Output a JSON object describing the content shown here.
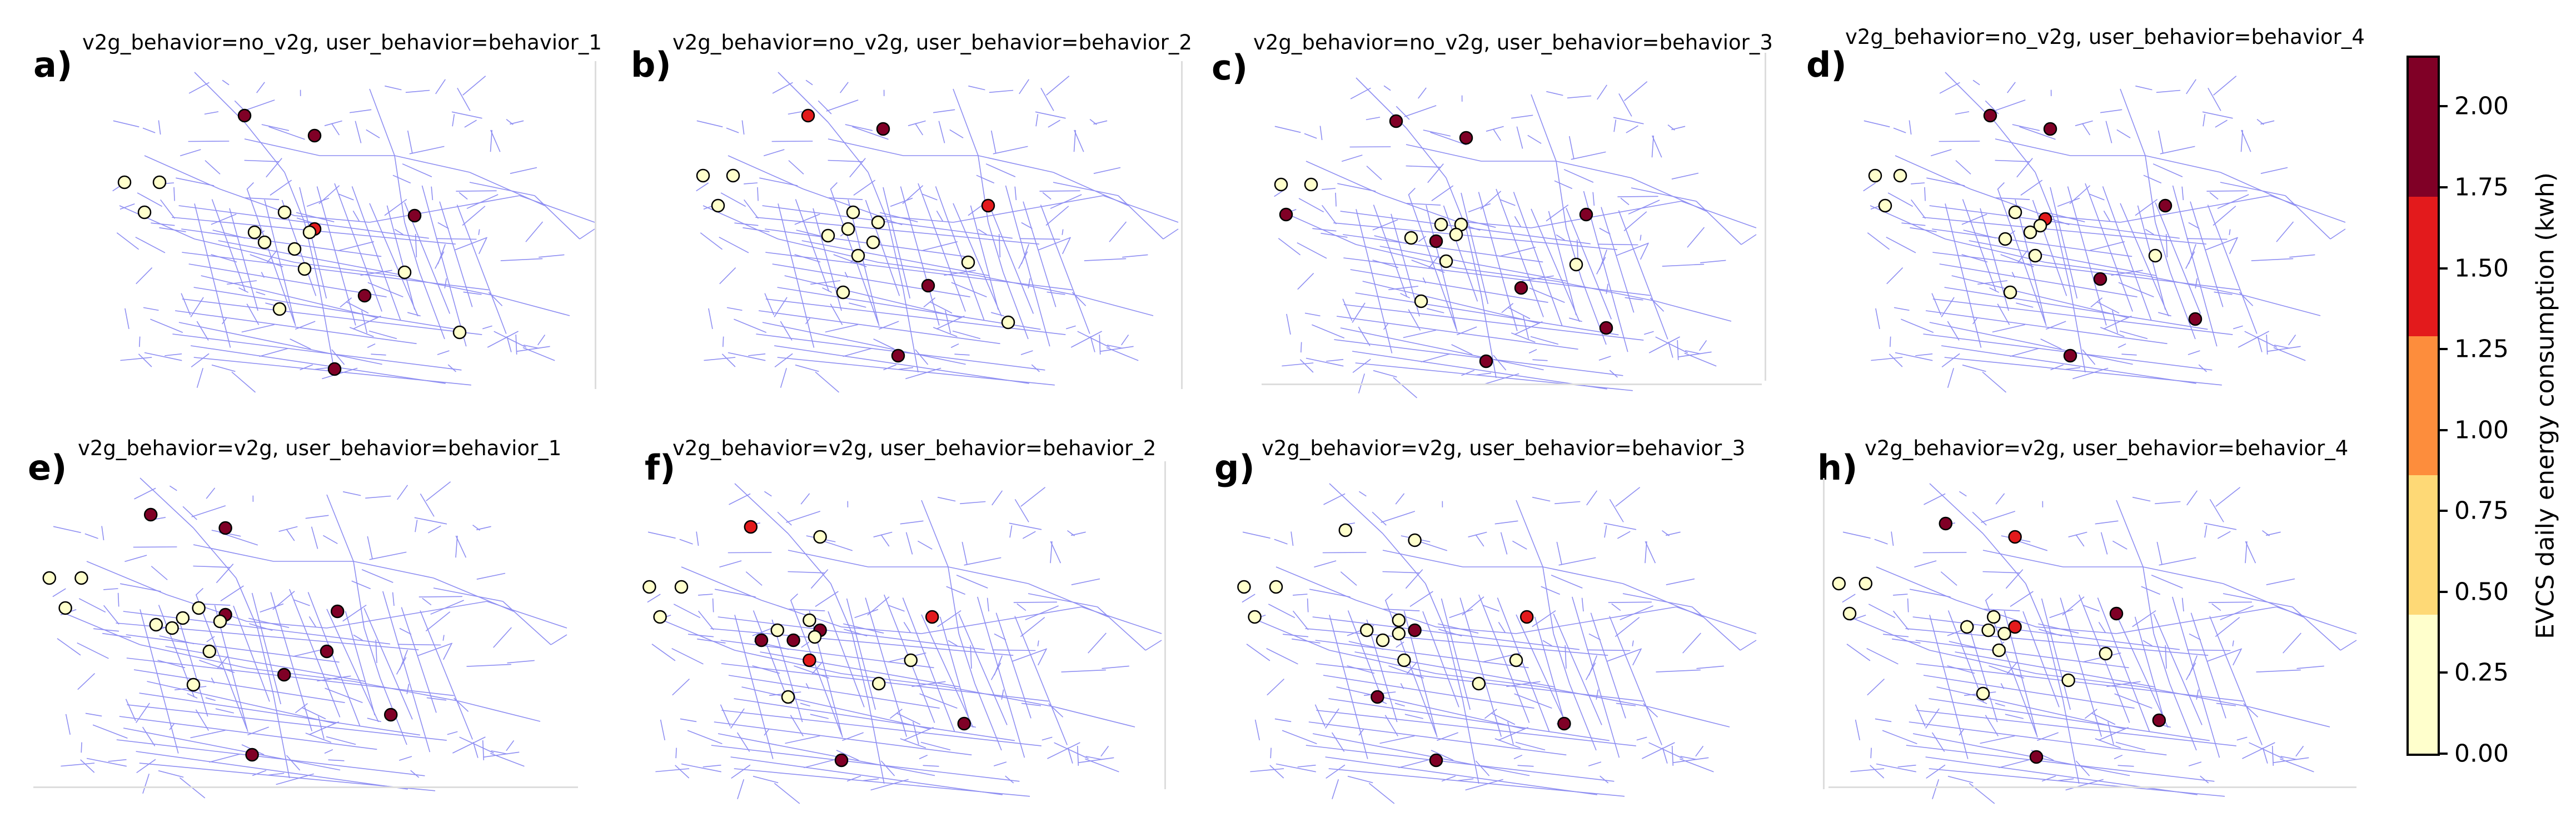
{
  "chart_data": {
    "type": "scatter",
    "description_kind": "small multiples map",
    "panels": [
      {
        "label": "a)",
        "title": "v2g_behavior=no_v2g, user_behavior=behavior_1",
        "stations": [
          {
            "x": 0.3,
            "y": 0.18,
            "value": 2.0
          },
          {
            "x": 0.44,
            "y": 0.24,
            "value": 2.0
          },
          {
            "x": 0.06,
            "y": 0.38,
            "value": 0.1
          },
          {
            "x": 0.13,
            "y": 0.38,
            "value": 0.1
          },
          {
            "x": 0.1,
            "y": 0.47,
            "value": 0.1
          },
          {
            "x": 0.38,
            "y": 0.47,
            "value": 0.1
          },
          {
            "x": 0.44,
            "y": 0.52,
            "value": 1.6
          },
          {
            "x": 0.43,
            "y": 0.53,
            "value": 0.1
          },
          {
            "x": 0.34,
            "y": 0.56,
            "value": 0.1
          },
          {
            "x": 0.4,
            "y": 0.58,
            "value": 0.1
          },
          {
            "x": 0.32,
            "y": 0.53,
            "value": 0.1
          },
          {
            "x": 0.64,
            "y": 0.48,
            "value": 2.0
          },
          {
            "x": 0.42,
            "y": 0.64,
            "value": 0.1
          },
          {
            "x": 0.62,
            "y": 0.65,
            "value": 0.1
          },
          {
            "x": 0.54,
            "y": 0.72,
            "value": 2.0
          },
          {
            "x": 0.37,
            "y": 0.76,
            "value": 0.1
          },
          {
            "x": 0.73,
            "y": 0.83,
            "value": 0.1
          },
          {
            "x": 0.48,
            "y": 0.94,
            "value": 2.0
          }
        ]
      },
      {
        "label": "b)",
        "title": "v2g_behavior=no_v2g, user_behavior=behavior_2",
        "stations": [
          {
            "x": 0.26,
            "y": 0.18,
            "value": 1.6
          },
          {
            "x": 0.41,
            "y": 0.22,
            "value": 2.0
          },
          {
            "x": 0.05,
            "y": 0.36,
            "value": 0.1
          },
          {
            "x": 0.11,
            "y": 0.36,
            "value": 0.1
          },
          {
            "x": 0.08,
            "y": 0.45,
            "value": 0.1
          },
          {
            "x": 0.62,
            "y": 0.45,
            "value": 1.6
          },
          {
            "x": 0.35,
            "y": 0.47,
            "value": 0.1
          },
          {
            "x": 0.4,
            "y": 0.5,
            "value": 0.1
          },
          {
            "x": 0.34,
            "y": 0.52,
            "value": 0.1
          },
          {
            "x": 0.3,
            "y": 0.54,
            "value": 0.1
          },
          {
            "x": 0.39,
            "y": 0.56,
            "value": 0.1
          },
          {
            "x": 0.36,
            "y": 0.6,
            "value": 0.1
          },
          {
            "x": 0.58,
            "y": 0.62,
            "value": 0.1
          },
          {
            "x": 0.5,
            "y": 0.69,
            "value": 2.0
          },
          {
            "x": 0.33,
            "y": 0.71,
            "value": 0.1
          },
          {
            "x": 0.66,
            "y": 0.8,
            "value": 0.1
          },
          {
            "x": 0.44,
            "y": 0.9,
            "value": 2.0
          }
        ]
      },
      {
        "label": "c)",
        "title": "v2g_behavior=no_v2g, user_behavior=behavior_3",
        "stations": [
          {
            "x": 0.28,
            "y": 0.18,
            "value": 2.0
          },
          {
            "x": 0.42,
            "y": 0.23,
            "value": 2.0
          },
          {
            "x": 0.05,
            "y": 0.37,
            "value": 0.1
          },
          {
            "x": 0.11,
            "y": 0.37,
            "value": 0.1
          },
          {
            "x": 0.06,
            "y": 0.46,
            "value": 2.0
          },
          {
            "x": 0.66,
            "y": 0.46,
            "value": 2.0
          },
          {
            "x": 0.37,
            "y": 0.49,
            "value": 0.1
          },
          {
            "x": 0.41,
            "y": 0.49,
            "value": 0.1
          },
          {
            "x": 0.31,
            "y": 0.53,
            "value": 0.1
          },
          {
            "x": 0.4,
            "y": 0.52,
            "value": 0.1
          },
          {
            "x": 0.36,
            "y": 0.54,
            "value": 2.0
          },
          {
            "x": 0.38,
            "y": 0.6,
            "value": 0.1
          },
          {
            "x": 0.64,
            "y": 0.61,
            "value": 0.1
          },
          {
            "x": 0.53,
            "y": 0.68,
            "value": 2.0
          },
          {
            "x": 0.33,
            "y": 0.72,
            "value": 0.1
          },
          {
            "x": 0.7,
            "y": 0.8,
            "value": 2.0
          },
          {
            "x": 0.46,
            "y": 0.9,
            "value": 2.0
          }
        ]
      },
      {
        "label": "d)",
        "title": "v2g_behavior=no_v2g, user_behavior=behavior_4",
        "stations": [
          {
            "x": 0.29,
            "y": 0.18,
            "value": 2.0
          },
          {
            "x": 0.41,
            "y": 0.22,
            "value": 2.0
          },
          {
            "x": 0.06,
            "y": 0.36,
            "value": 0.1
          },
          {
            "x": 0.11,
            "y": 0.36,
            "value": 0.1
          },
          {
            "x": 0.08,
            "y": 0.45,
            "value": 0.1
          },
          {
            "x": 0.64,
            "y": 0.45,
            "value": 2.0
          },
          {
            "x": 0.34,
            "y": 0.47,
            "value": 0.1
          },
          {
            "x": 0.4,
            "y": 0.49,
            "value": 1.6
          },
          {
            "x": 0.39,
            "y": 0.51,
            "value": 0.1
          },
          {
            "x": 0.37,
            "y": 0.53,
            "value": 0.1
          },
          {
            "x": 0.32,
            "y": 0.55,
            "value": 0.1
          },
          {
            "x": 0.38,
            "y": 0.6,
            "value": 0.1
          },
          {
            "x": 0.62,
            "y": 0.6,
            "value": 0.1
          },
          {
            "x": 0.51,
            "y": 0.67,
            "value": 2.0
          },
          {
            "x": 0.33,
            "y": 0.71,
            "value": 0.1
          },
          {
            "x": 0.7,
            "y": 0.79,
            "value": 2.0
          },
          {
            "x": 0.45,
            "y": 0.9,
            "value": 2.0
          }
        ]
      },
      {
        "label": "e)",
        "title": "v2g_behavior=v2g, user_behavior=behavior_1",
        "stations": [
          {
            "x": 0.22,
            "y": 0.16,
            "value": 2.0
          },
          {
            "x": 0.36,
            "y": 0.2,
            "value": 2.0
          },
          {
            "x": 0.03,
            "y": 0.35,
            "value": 0.1
          },
          {
            "x": 0.09,
            "y": 0.35,
            "value": 0.1
          },
          {
            "x": 0.06,
            "y": 0.44,
            "value": 0.1
          },
          {
            "x": 0.31,
            "y": 0.44,
            "value": 0.1
          },
          {
            "x": 0.36,
            "y": 0.46,
            "value": 2.0
          },
          {
            "x": 0.35,
            "y": 0.48,
            "value": 0.1
          },
          {
            "x": 0.28,
            "y": 0.47,
            "value": 0.1
          },
          {
            "x": 0.26,
            "y": 0.5,
            "value": 0.1
          },
          {
            "x": 0.23,
            "y": 0.49,
            "value": 0.1
          },
          {
            "x": 0.57,
            "y": 0.45,
            "value": 2.0
          },
          {
            "x": 0.33,
            "y": 0.57,
            "value": 0.1
          },
          {
            "x": 0.55,
            "y": 0.57,
            "value": 2.0
          },
          {
            "x": 0.47,
            "y": 0.64,
            "value": 2.0
          },
          {
            "x": 0.3,
            "y": 0.67,
            "value": 0.1
          },
          {
            "x": 0.67,
            "y": 0.76,
            "value": 2.0
          },
          {
            "x": 0.41,
            "y": 0.88,
            "value": 2.0
          }
        ]
      },
      {
        "label": "f)",
        "title": "v2g_behavior=v2g, user_behavior=behavior_2",
        "stations": [
          {
            "x": 0.23,
            "y": 0.18,
            "value": 1.6
          },
          {
            "x": 0.36,
            "y": 0.21,
            "value": 0.1
          },
          {
            "x": 0.04,
            "y": 0.36,
            "value": 0.1
          },
          {
            "x": 0.1,
            "y": 0.36,
            "value": 0.1
          },
          {
            "x": 0.06,
            "y": 0.45,
            "value": 0.1
          },
          {
            "x": 0.57,
            "y": 0.45,
            "value": 1.6
          },
          {
            "x": 0.34,
            "y": 0.46,
            "value": 0.1
          },
          {
            "x": 0.36,
            "y": 0.49,
            "value": 2.0
          },
          {
            "x": 0.35,
            "y": 0.51,
            "value": 0.1
          },
          {
            "x": 0.28,
            "y": 0.49,
            "value": 0.1
          },
          {
            "x": 0.31,
            "y": 0.52,
            "value": 2.0
          },
          {
            "x": 0.25,
            "y": 0.52,
            "value": 2.0
          },
          {
            "x": 0.34,
            "y": 0.58,
            "value": 1.6
          },
          {
            "x": 0.53,
            "y": 0.58,
            "value": 0.1
          },
          {
            "x": 0.47,
            "y": 0.65,
            "value": 0.1
          },
          {
            "x": 0.3,
            "y": 0.69,
            "value": 0.1
          },
          {
            "x": 0.63,
            "y": 0.77,
            "value": 2.0
          },
          {
            "x": 0.4,
            "y": 0.88,
            "value": 2.0
          }
        ]
      },
      {
        "label": "g)",
        "title": "v2g_behavior=v2g, user_behavior=behavior_3",
        "stations": [
          {
            "x": 0.23,
            "y": 0.19,
            "value": 0.1
          },
          {
            "x": 0.36,
            "y": 0.22,
            "value": 0.1
          },
          {
            "x": 0.04,
            "y": 0.36,
            "value": 0.1
          },
          {
            "x": 0.1,
            "y": 0.36,
            "value": 0.1
          },
          {
            "x": 0.06,
            "y": 0.45,
            "value": 0.1
          },
          {
            "x": 0.57,
            "y": 0.45,
            "value": 1.6
          },
          {
            "x": 0.33,
            "y": 0.46,
            "value": 0.1
          },
          {
            "x": 0.36,
            "y": 0.49,
            "value": 2.0
          },
          {
            "x": 0.33,
            "y": 0.5,
            "value": 0.1
          },
          {
            "x": 0.27,
            "y": 0.49,
            "value": 0.1
          },
          {
            "x": 0.3,
            "y": 0.52,
            "value": 0.1
          },
          {
            "x": 0.34,
            "y": 0.58,
            "value": 0.1
          },
          {
            "x": 0.55,
            "y": 0.58,
            "value": 0.1
          },
          {
            "x": 0.48,
            "y": 0.65,
            "value": 0.1
          },
          {
            "x": 0.29,
            "y": 0.69,
            "value": 2.0
          },
          {
            "x": 0.64,
            "y": 0.77,
            "value": 2.0
          },
          {
            "x": 0.4,
            "y": 0.88,
            "value": 2.0
          }
        ]
      },
      {
        "label": "h)",
        "title": "v2g_behavior=v2g, user_behavior=behavior_4",
        "stations": [
          {
            "x": 0.23,
            "y": 0.17,
            "value": 2.0
          },
          {
            "x": 0.36,
            "y": 0.21,
            "value": 1.6
          },
          {
            "x": 0.03,
            "y": 0.35,
            "value": 0.1
          },
          {
            "x": 0.08,
            "y": 0.35,
            "value": 0.1
          },
          {
            "x": 0.05,
            "y": 0.44,
            "value": 0.1
          },
          {
            "x": 0.55,
            "y": 0.44,
            "value": 2.0
          },
          {
            "x": 0.32,
            "y": 0.45,
            "value": 0.1
          },
          {
            "x": 0.36,
            "y": 0.48,
            "value": 1.6
          },
          {
            "x": 0.34,
            "y": 0.5,
            "value": 0.1
          },
          {
            "x": 0.27,
            "y": 0.48,
            "value": 0.1
          },
          {
            "x": 0.31,
            "y": 0.49,
            "value": 0.1
          },
          {
            "x": 0.33,
            "y": 0.55,
            "value": 0.1
          },
          {
            "x": 0.53,
            "y": 0.56,
            "value": 0.1
          },
          {
            "x": 0.46,
            "y": 0.64,
            "value": 0.1
          },
          {
            "x": 0.3,
            "y": 0.68,
            "value": 0.1
          },
          {
            "x": 0.63,
            "y": 0.76,
            "value": 2.0
          },
          {
            "x": 0.4,
            "y": 0.87,
            "value": 2.0
          }
        ]
      }
    ],
    "colorbar": {
      "label": "EVCS daily energy consumption (kwh)",
      "range": [
        0.0,
        2.15
      ],
      "ticks": [
        "0.00",
        "0.25",
        "0.50",
        "0.75",
        "1.00",
        "1.25",
        "1.50",
        "1.75",
        "2.00"
      ],
      "bins": [
        {
          "from": 0.0,
          "to": 0.43,
          "color": "#ffffcc"
        },
        {
          "from": 0.43,
          "to": 0.86,
          "color": "#fed976"
        },
        {
          "from": 0.86,
          "to": 1.29,
          "color": "#fd8d3c"
        },
        {
          "from": 1.29,
          "to": 1.72,
          "color": "#e31a1c"
        },
        {
          "from": 1.72,
          "to": 2.15,
          "color": "#800026"
        }
      ]
    },
    "road_color": "#7b7bf0",
    "grid": false,
    "legend_position": "right"
  }
}
